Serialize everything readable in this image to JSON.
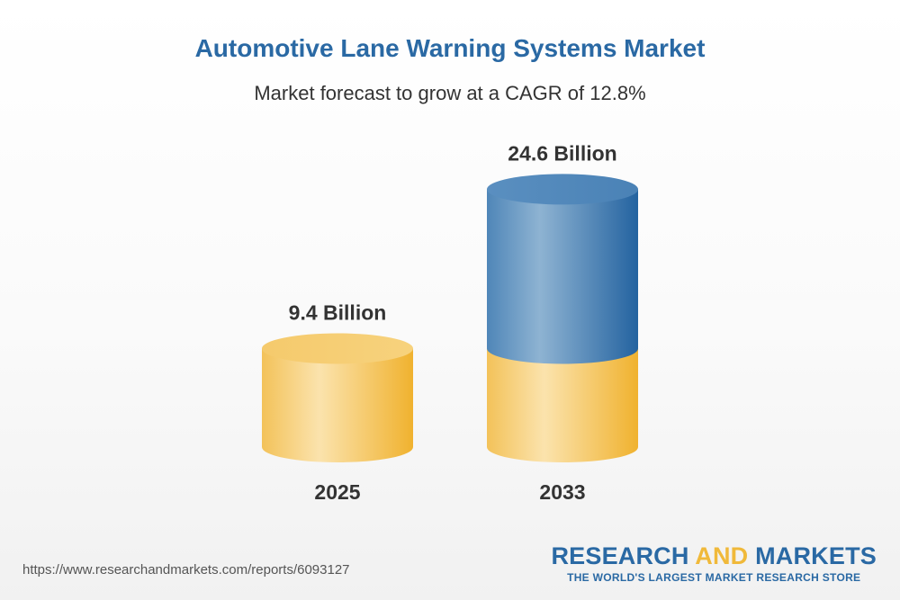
{
  "header": {
    "title": "Automotive Lane Warning Systems Market",
    "subtitle": "Market forecast to grow at a CAGR of 12.8%"
  },
  "chart_data": {
    "type": "bar",
    "style": "3d-cylinder",
    "categories": [
      "2025",
      "2033"
    ],
    "values": [
      9.4,
      24.6
    ],
    "value_labels": [
      "9.4 Billion",
      "24.6 Billion"
    ],
    "unit": "Billion",
    "cagr": "12.8%",
    "colors": {
      "base": "#f0b93a",
      "growth": "#2d6ea8"
    }
  },
  "footer": {
    "source_url": "https://www.researchandmarkets.com/reports/6093127",
    "brand_research": "RESEARCH",
    "brand_and": "AND",
    "brand_markets": "MARKETS",
    "brand_tagline": "THE WORLD'S LARGEST MARKET RESEARCH STORE"
  }
}
